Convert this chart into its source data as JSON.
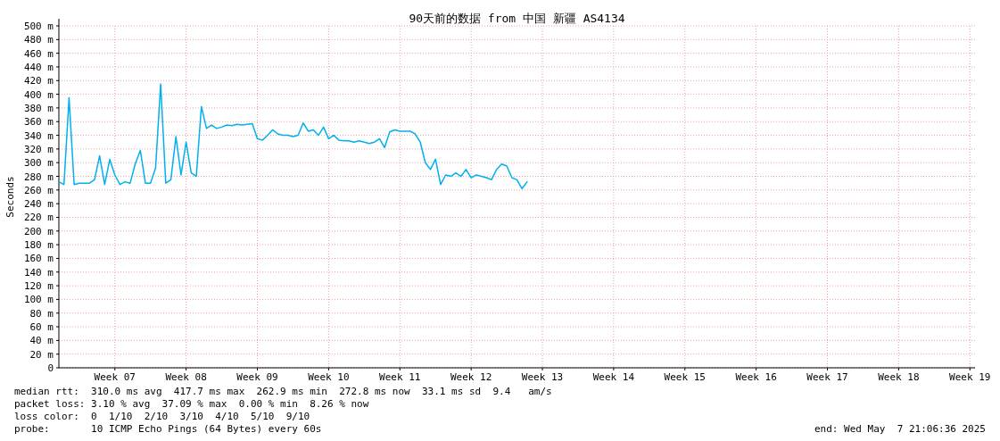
{
  "chart_data": {
    "type": "line",
    "title": "90天前的数据 from 中国 新疆 AS4134",
    "ylabel": "Seconds",
    "categories": [
      null,
      null,
      null,
      null,
      null,
      null,
      null,
      null,
      null,
      null,
      null,
      "Week 07",
      null,
      null,
      null,
      null,
      null,
      null,
      null,
      null,
      null,
      null,
      null,
      null,
      null,
      "Week 08",
      null,
      null,
      null,
      null,
      null,
      null,
      null,
      null,
      null,
      null,
      null,
      null,
      null,
      "Week 09",
      null,
      null,
      null,
      null,
      null,
      null,
      null,
      null,
      null,
      null,
      null,
      null,
      null,
      "Week 10",
      null,
      null,
      null,
      null,
      null,
      null,
      null,
      null,
      null,
      null,
      null,
      null,
      null,
      "Week 11",
      null,
      null,
      null,
      null,
      null,
      null,
      null,
      null,
      null,
      null,
      null,
      null,
      null,
      "Week 12",
      null,
      null,
      null,
      null,
      null,
      null,
      null,
      null,
      null,
      null,
      null,
      null,
      null,
      "Week 13",
      null,
      null,
      null,
      null,
      null,
      null,
      null,
      null,
      null,
      null,
      null,
      null,
      null,
      "Week 14",
      null,
      null,
      null,
      null,
      null,
      null,
      null,
      null,
      null,
      null,
      null,
      null,
      null,
      "Week 15",
      null,
      null,
      null,
      null,
      null,
      null,
      null,
      null,
      null,
      null,
      null,
      null,
      null,
      "Week 16",
      null,
      null,
      null,
      null,
      null,
      null,
      null,
      null,
      null,
      null,
      null,
      null,
      null,
      "Week 17",
      null,
      null,
      null,
      null,
      null,
      null,
      null,
      null,
      null,
      null,
      null,
      null,
      null,
      "Week 18",
      null,
      null,
      null,
      null,
      null,
      null,
      null,
      null,
      null,
      null,
      null,
      null,
      null,
      "Week 19",
      null
    ],
    "ylim": [
      0,
      500
    ],
    "yticks": [
      0,
      {
        "value": 20,
        "label": "20 m"
      },
      {
        "value": 40,
        "label": "40 m"
      },
      {
        "value": 60,
        "label": "60 m"
      },
      {
        "value": 80,
        "label": "80 m"
      },
      {
        "value": 100,
        "label": "100 m"
      },
      {
        "value": 120,
        "label": "120 m"
      },
      {
        "value": 140,
        "label": "140 m"
      },
      {
        "value": 160,
        "label": "160 m"
      },
      {
        "value": 180,
        "label": "180 m"
      },
      {
        "value": 200,
        "label": "200 m"
      },
      {
        "value": 220,
        "label": "220 m"
      },
      {
        "value": 240,
        "label": "240 m"
      },
      {
        "value": 260,
        "label": "260 m"
      },
      {
        "value": 280,
        "label": "280 m"
      },
      {
        "value": 300,
        "label": "300 m"
      },
      {
        "value": 320,
        "label": "320 m"
      },
      {
        "value": 340,
        "label": "340 m"
      },
      {
        "value": 360,
        "label": "360 m"
      },
      {
        "value": 380,
        "label": "380 m"
      },
      {
        "value": 400,
        "label": "400 m"
      },
      {
        "value": 420,
        "label": "420 m"
      },
      {
        "value": 440,
        "label": "440 m"
      },
      {
        "value": 460,
        "label": "460 m"
      },
      {
        "value": 480,
        "label": "480 m"
      },
      {
        "value": 500,
        "label": "500 m"
      }
    ],
    "grid": true,
    "series": [
      {
        "color": "#00b0f0",
        "values": [
          272,
          268,
          395,
          268,
          270,
          270,
          270,
          275,
          310,
          268,
          305,
          282,
          268,
          272,
          270,
          298,
          318,
          270,
          270,
          292,
          415,
          270,
          275,
          338,
          282,
          330,
          285,
          280,
          382,
          350,
          355,
          350,
          352,
          355,
          354,
          356,
          355,
          356,
          357,
          335,
          333,
          340,
          348,
          342,
          340,
          340,
          338,
          340,
          358,
          346,
          348,
          340,
          352,
          335,
          340,
          333,
          332,
          332,
          330,
          332,
          330,
          328,
          330,
          335,
          322,
          345,
          348,
          346,
          346,
          346,
          342,
          330,
          300,
          290,
          305,
          268,
          282,
          280,
          285,
          280,
          290,
          278,
          282,
          280,
          278,
          275,
          290,
          298,
          295,
          278,
          275,
          262,
          272,
          null,
          null,
          null,
          null,
          null,
          null,
          null,
          null,
          null,
          null,
          null,
          null,
          null,
          null,
          null,
          null,
          null,
          null,
          null,
          null,
          null,
          null,
          null,
          null,
          null,
          null,
          null,
          null,
          null,
          null,
          null,
          null,
          null,
          null,
          null,
          null,
          null,
          null,
          null,
          null,
          null,
          null,
          null,
          null,
          null,
          null,
          null,
          null,
          null,
          null,
          null,
          null,
          null,
          null,
          null,
          null,
          null,
          null,
          null,
          null,
          null,
          null,
          null,
          null,
          null,
          null,
          null,
          null,
          null,
          null,
          null,
          null,
          null,
          null,
          null,
          null,
          null,
          null,
          null,
          null,
          null,
          null,
          null,
          null,
          null,
          null,
          null,
          null
        ]
      }
    ],
    "annotations": [
      "median rtt:  310.0 ms avg  417.7 ms max  262.9 ms min  272.8 ms now  33.1 ms sd  9.4   am/s",
      "packet loss: 3.10 % avg  37.09 % max  0.00 % min  8.26 % now",
      "loss color:  0  1/10  2/10  3/10  4/10  5/10  9/10",
      "probe:       10 ICMP Echo Pings (64 Bytes) every 60s",
      "end: Wed May  7 21:06:36 2025"
    ]
  }
}
